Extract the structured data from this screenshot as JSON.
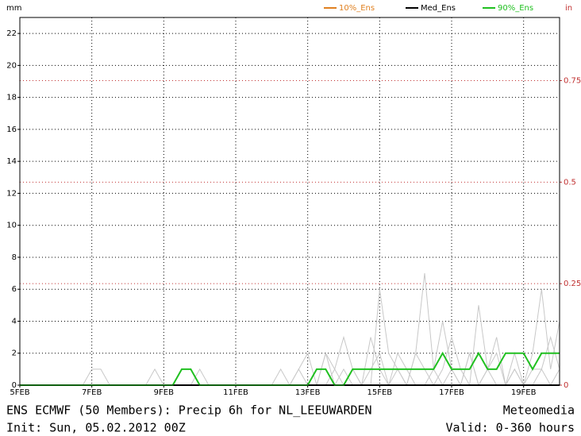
{
  "chart_data": {
    "type": "line",
    "y_label": "mm",
    "y2_label": "in",
    "title": "ENS ECMWF (50 Members): Precip 6h for NL_LEEUWARDEN",
    "source": "Meteomedia",
    "init": "Init: Sun, 05.02.2012 00Z",
    "valid": "Valid: 0-360 hours",
    "xlim": [
      0,
      360
    ],
    "xticks": [
      {
        "value": 0,
        "label": "5FEB"
      },
      {
        "value": 48,
        "label": "7FEB"
      },
      {
        "value": 96,
        "label": "9FEB"
      },
      {
        "value": 144,
        "label": "11FEB"
      },
      {
        "value": 192,
        "label": "13FEB"
      },
      {
        "value": 240,
        "label": "15FEB"
      },
      {
        "value": 288,
        "label": "17FEB"
      },
      {
        "value": 336,
        "label": "19FEB"
      }
    ],
    "ylim": [
      0,
      23
    ],
    "yticks": [
      0,
      2,
      4,
      6,
      8,
      10,
      12,
      14,
      16,
      18,
      20,
      22
    ],
    "y2lim": [
      0,
      0.9055
    ],
    "y2ticks": [
      0,
      0.25,
      0.5,
      0.75
    ],
    "y2_color": "#c03030",
    "grid": true,
    "x": [
      0,
      6,
      12,
      18,
      24,
      30,
      36,
      42,
      48,
      54,
      60,
      66,
      72,
      78,
      84,
      90,
      96,
      102,
      108,
      114,
      120,
      126,
      132,
      138,
      144,
      150,
      156,
      162,
      168,
      174,
      180,
      186,
      192,
      198,
      204,
      210,
      216,
      222,
      228,
      234,
      240,
      246,
      252,
      258,
      264,
      270,
      276,
      282,
      288,
      294,
      300,
      306,
      312,
      318,
      324,
      330,
      336,
      342,
      348,
      354,
      360
    ],
    "members": [
      {
        "color": "#c8c8c8",
        "values": [
          0,
          0,
          0,
          0,
          0,
          0,
          0,
          0,
          1,
          1,
          0,
          0,
          0,
          0,
          0,
          0,
          0,
          0,
          0,
          0,
          1,
          0,
          0,
          0,
          0,
          0,
          0,
          0,
          0,
          0,
          0,
          0,
          0,
          0,
          2,
          1,
          0,
          1,
          0,
          3,
          1,
          0,
          2,
          1,
          0,
          0,
          1,
          4,
          1,
          0,
          2,
          0,
          1,
          3,
          0,
          1,
          0,
          2,
          6,
          1,
          4
        ]
      },
      {
        "color": "#c8c8c8",
        "values": [
          0,
          0,
          0,
          0,
          0,
          0,
          0,
          0,
          0,
          0,
          0,
          0,
          0,
          0,
          0,
          0,
          0,
          0,
          0,
          0,
          0,
          0,
          0,
          0,
          0,
          0,
          0,
          0,
          0,
          0,
          0,
          1,
          2,
          0,
          0,
          1,
          3,
          1,
          0,
          0,
          6,
          2,
          1,
          0,
          2,
          1,
          0,
          1,
          3,
          1,
          0,
          5,
          1,
          2,
          0,
          1,
          0,
          0,
          1,
          3,
          1
        ]
      },
      {
        "color": "#c8c8c8",
        "values": [
          0,
          0,
          0,
          0,
          0,
          0,
          0,
          0,
          0,
          0,
          0,
          0,
          0,
          0,
          0,
          1,
          0,
          0,
          0,
          0,
          0,
          0,
          0,
          0,
          0,
          0,
          0,
          0,
          0,
          1,
          0,
          1,
          0,
          0,
          2,
          0,
          1,
          0,
          0,
          1,
          2,
          0,
          1,
          0,
          2,
          7,
          1,
          0,
          1,
          0,
          2,
          0,
          1,
          0,
          0,
          2,
          0,
          1,
          1,
          0,
          1
        ]
      }
    ],
    "series": [
      {
        "name": "10%_Ens",
        "color": "#e08020",
        "values": [
          0,
          0,
          0,
          0,
          0,
          0,
          0,
          0,
          0,
          0,
          0,
          0,
          0,
          0,
          0,
          0,
          0,
          0,
          0,
          0,
          0,
          0,
          0,
          0,
          0,
          0,
          0,
          0,
          0,
          0,
          0,
          0,
          0,
          0,
          0,
          0,
          0,
          0,
          0,
          0,
          0,
          0,
          0,
          0,
          0,
          0,
          0,
          0,
          0,
          0,
          0,
          0,
          0,
          0,
          0,
          0,
          0,
          0,
          0,
          0,
          0
        ]
      },
      {
        "name": "Med_Ens",
        "color": "#000000",
        "values": [
          0,
          0,
          0,
          0,
          0,
          0,
          0,
          0,
          0,
          0,
          0,
          0,
          0,
          0,
          0,
          0,
          0,
          0,
          0,
          0,
          0,
          0,
          0,
          0,
          0,
          0,
          0,
          0,
          0,
          0,
          0,
          0,
          0,
          0,
          0,
          0,
          0,
          0,
          0,
          0,
          0,
          0,
          0,
          0,
          0,
          0,
          0,
          0,
          0,
          0,
          0,
          0,
          0,
          0,
          0,
          0,
          0,
          0,
          0,
          0,
          0
        ]
      },
      {
        "name": "90%_Ens",
        "color": "#20c020",
        "values": [
          0,
          0,
          0,
          0,
          0,
          0,
          0,
          0,
          0,
          0,
          0,
          0,
          0,
          0,
          0,
          0,
          0,
          0,
          1,
          1,
          0,
          0,
          0,
          0,
          0,
          0,
          0,
          0,
          0,
          0,
          0,
          0,
          0,
          1,
          1,
          0,
          0,
          1,
          1,
          1,
          1,
          1,
          1,
          1,
          1,
          1,
          1,
          2,
          1,
          1,
          1,
          2,
          1,
          1,
          2,
          2,
          2,
          1,
          2,
          2,
          2
        ]
      }
    ]
  }
}
